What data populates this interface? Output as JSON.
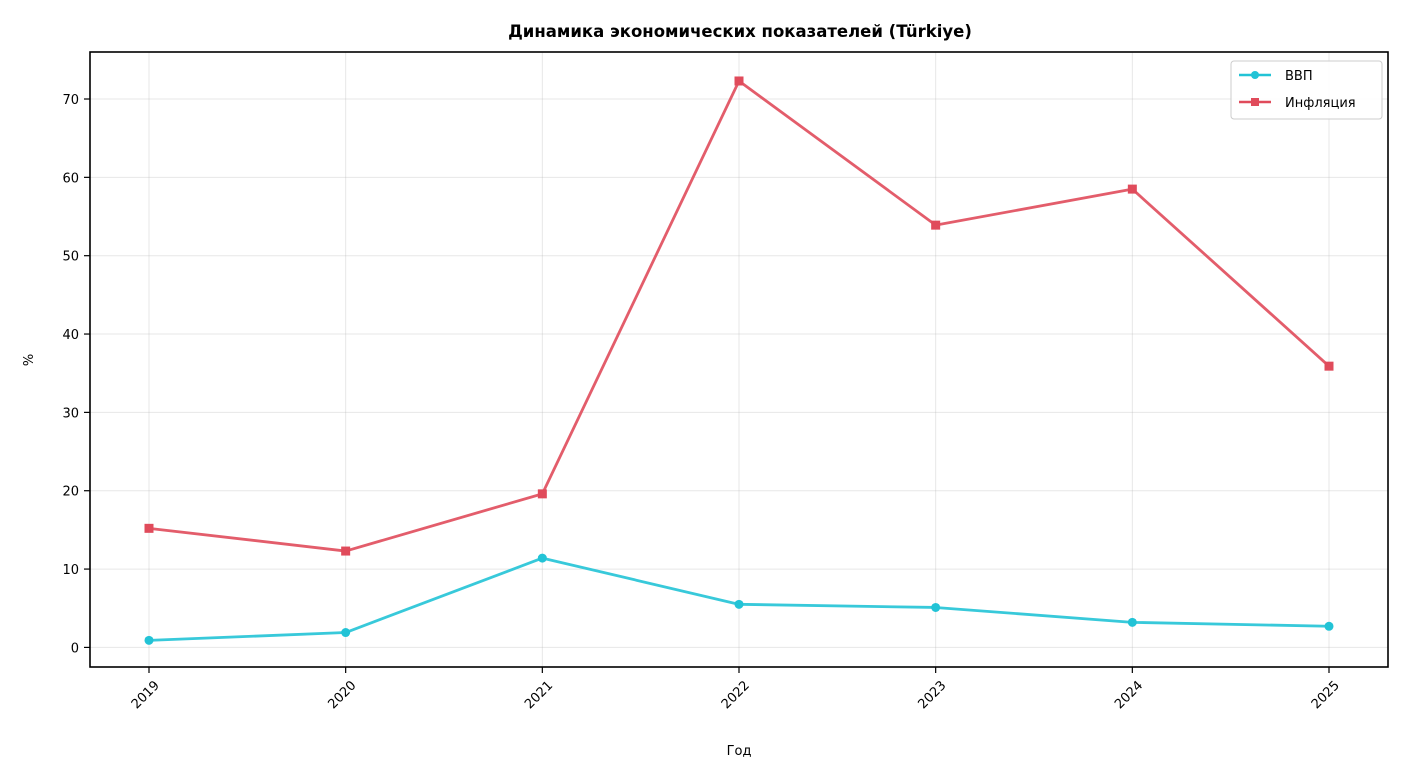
{
  "chart_data": {
    "type": "line",
    "title": "Динамика экономических показателей (Türkiye)",
    "xlabel": "Год",
    "ylabel": "%",
    "categories": [
      "2019",
      "2020",
      "2021",
      "2022",
      "2023",
      "2024",
      "2025"
    ],
    "yticks": [
      "0",
      "10",
      "20",
      "30",
      "40",
      "50",
      "60",
      "70"
    ],
    "ylim": [
      -2.5,
      76
    ],
    "grid": true,
    "legend_position": "top-right",
    "series": [
      {
        "name": "ВВП",
        "color": "#22c3d6",
        "marker": "circle",
        "values": [
          0.9,
          1.9,
          11.4,
          5.5,
          5.1,
          3.2,
          2.7
        ]
      },
      {
        "name": "Инфляция",
        "color": "#e04b5b",
        "marker": "square",
        "values": [
          15.2,
          12.3,
          19.6,
          72.3,
          53.9,
          58.5,
          35.9
        ]
      }
    ]
  }
}
